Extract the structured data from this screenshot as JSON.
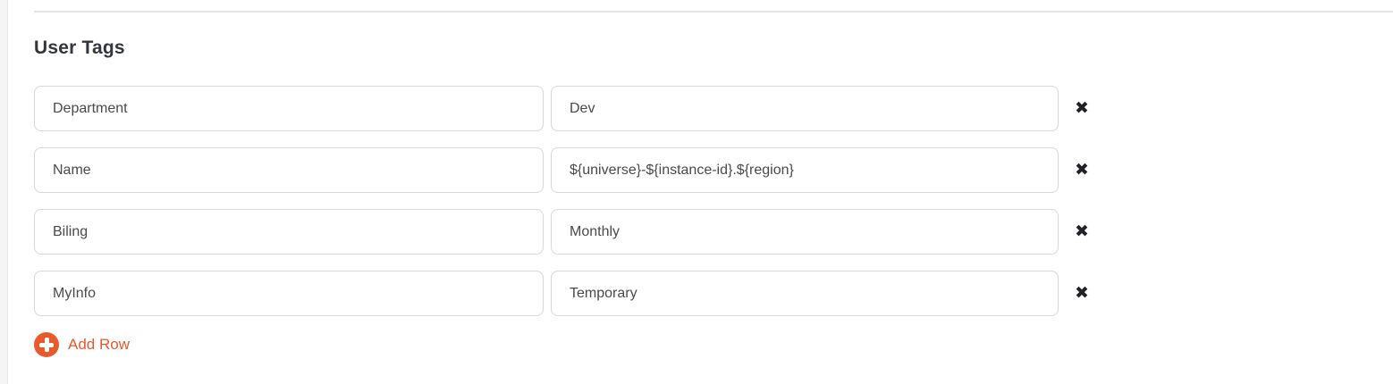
{
  "section": {
    "heading": "User Tags",
    "rows": [
      {
        "key": "Department",
        "value": "Dev"
      },
      {
        "key": "Name",
        "value": "${universe}-${instance-id}.${region}"
      },
      {
        "key": "Biling",
        "value": "Monthly"
      },
      {
        "key": "MyInfo",
        "value": "Temporary"
      }
    ],
    "remove_icon_glyph": "✖",
    "add_row": {
      "label": "Add Row",
      "icon": "plus-circle-icon"
    },
    "colors": {
      "accent_orange": "#e8592c",
      "input_border": "#d8d8d8",
      "input_text": "#4a4a4a",
      "heading_text": "#33363c",
      "remove_icon": "#212227",
      "divider": "#e4e4e4",
      "page_edge_strip": "#f5f5f5"
    }
  }
}
